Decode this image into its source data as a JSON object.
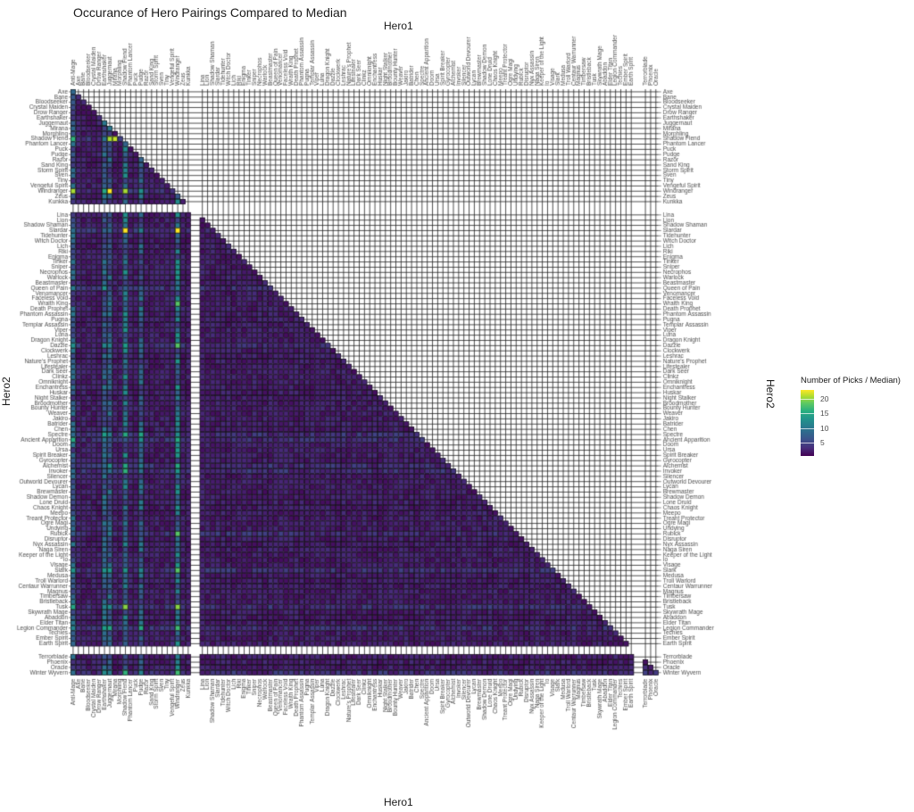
{
  "chart_data": {
    "type": "heatmap",
    "title": "Occurance of Hero Pairings Compared to Median",
    "xlabel": "Hero1",
    "ylabel": "Hero2",
    "legend": {
      "title": "Number of Picks / Median)",
      "ticks": [
        5,
        10,
        15,
        20
      ],
      "range": [
        0.5,
        23
      ],
      "colormap": "viridis",
      "position": "right"
    },
    "x_categories": [
      "Anti-Mage",
      "Axe",
      "Bane",
      "Bloodseeker",
      "Crystal Maiden",
      "Drow Ranger",
      "Earthshaker",
      "Juggernaut",
      "Mirana",
      "Morphling",
      "Shadow Fiend",
      "Phantom Lancer",
      "Puck",
      "Pudge",
      "Razor",
      "Sand King",
      "Storm Spirit",
      "Sven",
      "Tiny",
      "Vengeful Spirit",
      "Windranger",
      "Zeus",
      "Kunkka",
      "|",
      "Lina",
      "Lion",
      "Shadow Shaman",
      "Slardar",
      "Tidehunter",
      "Witch Doctor",
      "Lich",
      "Riki",
      "Enigma",
      "Tinker",
      "Sniper",
      "Necrophos",
      "Warlock",
      "Beastmaster",
      "Queen of Pain",
      "Venomancer",
      "Faceless Void",
      "Wraith King",
      "Death Prophet",
      "Phantom Assassin",
      "Pugna",
      "Templar Assassin",
      "Viper",
      "Luna",
      "Dragon Knight",
      "Dazzle",
      "Clockwerk",
      "Leshrac",
      "Nature's Prophet",
      "Lifestealer",
      "Dark Seer",
      "Clinkz",
      "Omniknight",
      "Enchantress",
      "Huskar",
      "Night Stalker",
      "Broodmother",
      "Bounty Hunter",
      "Weaver",
      "Jakiro",
      "Batrider",
      "Chen",
      "Spectre",
      "Ancient Apparition",
      "Doom",
      "Ursa",
      "Spirit Breaker",
      "Gyrocopter",
      "Alchemist",
      "Invoker",
      "Silencer",
      "Outworld Devourer",
      "Lycan",
      "Brewmaster",
      "Shadow Demon",
      "Lone Druid",
      "Chaos Knight",
      "Meepo",
      "Treant Protector",
      "Ogre Magi",
      "Undying",
      "Rubick",
      "Disruptor",
      "Nyx Assassin",
      "Naga Siren",
      "Keeper of the Light",
      "Io",
      "Visage",
      "Slark",
      "Medusa",
      "Troll Warlord",
      "Centaur Warrunner",
      "Magnus",
      "Timbersaw",
      "Bristleback",
      "Tusk",
      "Skywrath Mage",
      "Abaddon",
      "Elder Titan",
      "Legion Commander",
      "Techies",
      "Ember Spirit",
      "Earth Spirit",
      "|",
      "Terrorblade",
      "Phoenix",
      "Oracle"
    ],
    "y_categories": [
      "Axe",
      "Bane",
      "Bloodseeker",
      "Crystal Maiden",
      "Drow Ranger",
      "Earthshaker",
      "Juggernaut",
      "Mirana",
      "Morphling",
      "Shadow Fiend",
      "Phantom Lancer",
      "Puck",
      "Pudge",
      "Razor",
      "Sand King",
      "Storm Spirit",
      "Sven",
      "Tiny",
      "Vengeful Spirit",
      "Windranger",
      "Zeus",
      "Kunkka",
      "|",
      "Lina",
      "Lion",
      "Shadow Shaman",
      "Slardar",
      "Tidehunter",
      "Witch Doctor",
      "Lich",
      "Riki",
      "Enigma",
      "Tinker",
      "Sniper",
      "Necrophos",
      "Warlock",
      "Beastmaster",
      "Queen of Pain",
      "Venomancer",
      "Faceless Void",
      "Wraith King",
      "Death Prophet",
      "Phantom Assassin",
      "Pugna",
      "Templar Assassin",
      "Viper",
      "Luna",
      "Dragon Knight",
      "Dazzle",
      "Clockwerk",
      "Leshrac",
      "Nature's Prophet",
      "Lifestealer",
      "Dark Seer",
      "Clinkz",
      "Omniknight",
      "Enchantress",
      "Huskar",
      "Night Stalker",
      "Broodmother",
      "Bounty Hunter",
      "Weaver",
      "Jakiro",
      "Batrider",
      "Chen",
      "Spectre",
      "Ancient Apparition",
      "Doom",
      "Ursa",
      "Spirit Breaker",
      "Gyrocopter",
      "Alchemist",
      "Invoker",
      "Silencer",
      "Outworld Devourer",
      "Lycan",
      "Brewmaster",
      "Shadow Demon",
      "Lone Druid",
      "Chaos Knight",
      "Meepo",
      "Treant Protector",
      "Ogre Magi",
      "Undying",
      "Rubick",
      "Disruptor",
      "Nyx Assassin",
      "Naga Siren",
      "Keeper of the Light",
      "Io",
      "Visage",
      "Slark",
      "Medusa",
      "Troll Warlord",
      "Centaur Warrunner",
      "Magnus",
      "Timbersaw",
      "Bristleback",
      "Tusk",
      "Skywrath Mage",
      "Abaddon",
      "Elder Titan",
      "Legion Commander",
      "Techies",
      "Ember Spirit",
      "Earth Spirit",
      "|",
      "Terrorblade",
      "Phoenix",
      "Oracle",
      "Winter Wyvern"
    ],
    "grid": true,
    "lower_triangle_only": true,
    "notable_cells": [
      {
        "hero1": "Shadow Fiend",
        "hero2": "Slardar",
        "value": 23
      },
      {
        "hero1": "Windranger",
        "hero2": "Slardar",
        "value": 23
      },
      {
        "hero1": "Juggernaut",
        "hero2": "Windranger",
        "value": 23
      },
      {
        "hero1": "Mirana",
        "hero2": "Shadow Fiend",
        "value": 21
      },
      {
        "hero1": "Shadow Fiend",
        "hero2": "Windranger",
        "value": 20
      },
      {
        "hero1": "Anti-Mage",
        "hero2": "Windranger",
        "value": 20
      },
      {
        "hero1": "Juggernaut",
        "hero2": "Shadow Fiend",
        "value": 20
      },
      {
        "hero1": "Windranger",
        "hero2": "Tusk",
        "value": 19
      },
      {
        "hero1": "Shadow Fiend",
        "hero2": "Tusk",
        "value": 19
      },
      {
        "hero1": "Windranger",
        "hero2": "Wraith King",
        "value": 17
      },
      {
        "hero1": "Windranger",
        "hero2": "Rubick",
        "value": 17
      },
      {
        "hero1": "Windranger",
        "hero2": "Slark",
        "value": 17
      },
      {
        "hero1": "Windranger",
        "hero2": "Dazzle",
        "value": 17
      },
      {
        "hero1": "Windranger",
        "hero2": "Legion Commander",
        "value": 16
      },
      {
        "hero1": "Windranger",
        "hero2": "Winter Wyvern",
        "value": 16
      },
      {
        "hero1": "Shadow Fiend",
        "hero2": "Winter Wyvern",
        "value": 15
      },
      {
        "hero1": "Shadow Fiend",
        "hero2": "Invoker",
        "value": 15
      },
      {
        "hero1": "Anti-Mage",
        "hero2": "Shadow Fiend",
        "value": 15
      }
    ],
    "bright_columns": [
      "Shadow Fiend",
      "Windranger",
      "Juggernaut",
      "Earthshaker",
      "Pudge",
      "Anti-Mage"
    ],
    "bright_rows": [
      "Shadow Fiend",
      "Windranger",
      "Slardar",
      "Queen of Pain",
      "Invoker",
      "Tusk",
      "Slark",
      "Rubick",
      "Spectre",
      "Ancient Apparition",
      "Alchemist",
      "Dazzle",
      "Winter Wyvern",
      "Legion Commander"
    ]
  }
}
